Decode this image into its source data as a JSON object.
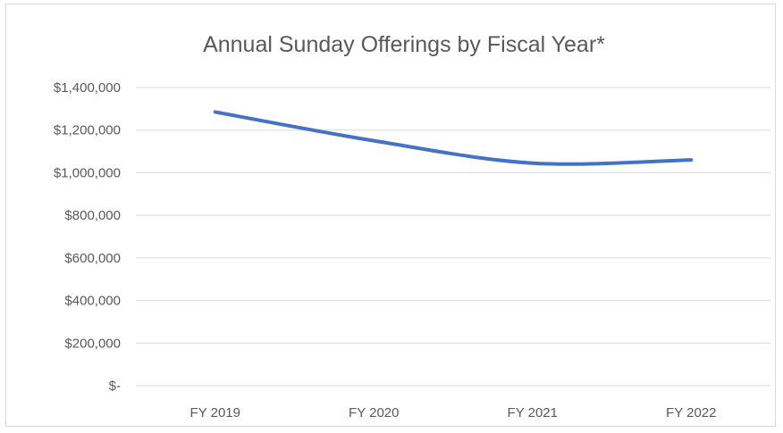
{
  "chart_data": {
    "type": "line",
    "title": "Annual Sunday Offerings by Fiscal Year*",
    "xlabel": "",
    "ylabel": "",
    "categories": [
      "FY 2019",
      "FY 2020",
      "FY 2021",
      "FY 2022"
    ],
    "series": [
      {
        "values": [
          1285000,
          1150000,
          1045000,
          1060000
        ],
        "color": "#4472c4"
      }
    ],
    "ylim": [
      0,
      1400000
    ],
    "yticks": [
      {
        "value": 1400000,
        "label": "$1,400,000"
      },
      {
        "value": 1200000,
        "label": "$1,200,000"
      },
      {
        "value": 1000000,
        "label": "$1,000,000"
      },
      {
        "value": 800000,
        "label": "$800,000"
      },
      {
        "value": 600000,
        "label": "$600,000"
      },
      {
        "value": 400000,
        "label": "$400,000"
      },
      {
        "value": 200000,
        "label": "$200,000"
      },
      {
        "value": 0,
        "label": "$-"
      }
    ],
    "grid": true,
    "legend": "none"
  }
}
